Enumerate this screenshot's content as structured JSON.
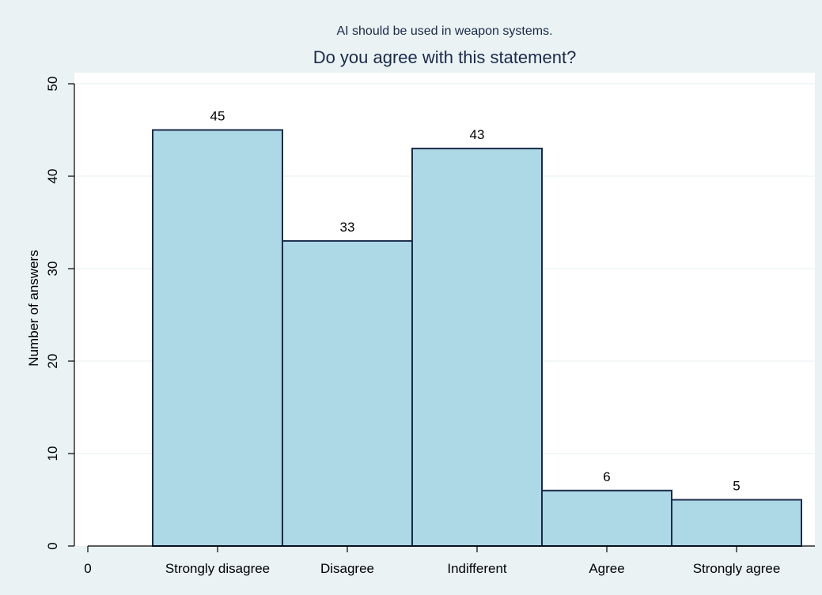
{
  "chart_data": {
    "type": "bar",
    "subtitle": "AI should be used in weapon systems.",
    "title": "Do you agree with this statement?",
    "xlabel": "",
    "ylabel": "Number of answers",
    "categories": [
      "Strongly disagree",
      "Disagree",
      "Indifferent",
      "Agree",
      "Strongly agree"
    ],
    "values": [
      45,
      33,
      43,
      6,
      5
    ],
    "x_tick_labels": [
      "0",
      "Strongly disagree",
      "Disagree",
      "Indifferent",
      "Agree",
      "Strongly agree"
    ],
    "ylim": [
      0,
      50
    ],
    "yticks": [
      0,
      10,
      20,
      30,
      40,
      50
    ],
    "grid": true,
    "legend": "none",
    "colors": {
      "background": "#eaf2f3",
      "plot_background": "#ffffff",
      "bar_fill": "#add8e6",
      "bar_stroke": "#1a2a4a",
      "grid": "#eaf2f3",
      "text": "#000000",
      "title_text": "#1a2a4a"
    }
  }
}
